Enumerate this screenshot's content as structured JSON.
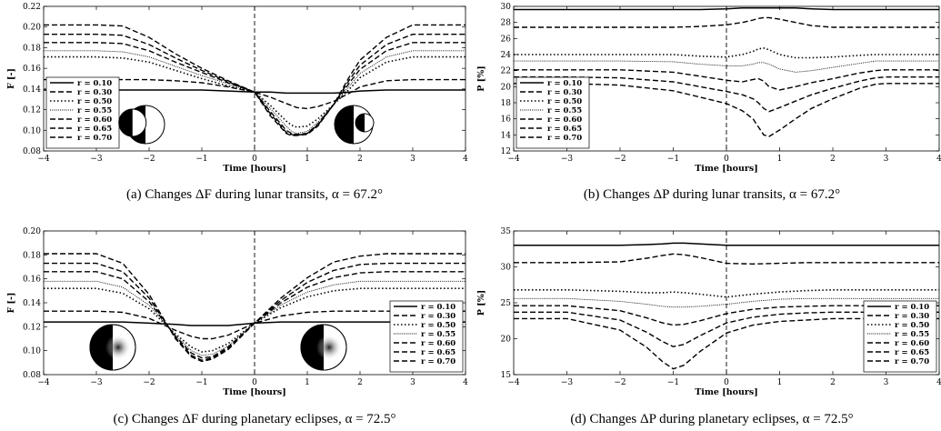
{
  "styles": {
    "line_color": "#000000",
    "disk_dark": "#000000",
    "disk_light": "#ffffff"
  },
  "chart_data": [
    {
      "id": "a",
      "type": "line",
      "caption": "(a) Changes ΔF during lunar transits, α = 67.2°",
      "xlabel": "Time [hours]",
      "ylabel": "F [-]",
      "xlim": [
        -4,
        4
      ],
      "ylim": [
        0.08,
        0.22
      ],
      "xticks": [
        -4,
        -3,
        -2,
        -1,
        0,
        1,
        2,
        3,
        4
      ],
      "yticks": [
        0.08,
        0.1,
        0.12,
        0.14,
        0.16,
        0.18,
        0.2,
        0.22
      ],
      "ytick_labels": [
        "0.08",
        "0.10",
        "0.12",
        "0.14",
        "0.16",
        "0.18",
        "0.20",
        "0.22"
      ],
      "legend_pos": "lower-left",
      "insets": "transit",
      "x": [
        -4,
        -3,
        -2.5,
        -2,
        -1.5,
        -1,
        -0.5,
        0,
        0.3,
        0.6,
        0.7,
        0.8,
        1.0,
        1.2,
        1.5,
        1.8,
        2.0,
        2.5,
        3,
        4
      ],
      "series": [
        {
          "name": "r = 0.10",
          "style": "solid",
          "values": [
            0.139,
            0.139,
            0.139,
            0.139,
            0.139,
            0.139,
            0.138,
            0.137,
            0.137,
            0.136,
            0.136,
            0.136,
            0.136,
            0.136,
            0.136,
            0.137,
            0.138,
            0.139,
            0.139,
            0.139
          ]
        },
        {
          "name": "r = 0.30",
          "style": "dash",
          "values": [
            0.149,
            0.149,
            0.149,
            0.149,
            0.148,
            0.146,
            0.142,
            0.137,
            0.132,
            0.126,
            0.124,
            0.122,
            0.121,
            0.123,
            0.128,
            0.136,
            0.142,
            0.148,
            0.149,
            0.149
          ]
        },
        {
          "name": "r = 0.50",
          "style": "dot",
          "values": [
            0.171,
            0.171,
            0.17,
            0.166,
            0.158,
            0.15,
            0.143,
            0.137,
            0.124,
            0.109,
            0.105,
            0.103,
            0.104,
            0.111,
            0.125,
            0.14,
            0.151,
            0.166,
            0.171,
            0.171
          ]
        },
        {
          "name": "r = 0.55",
          "style": "fine",
          "values": [
            0.177,
            0.177,
            0.176,
            0.171,
            0.162,
            0.153,
            0.145,
            0.137,
            0.121,
            0.104,
            0.099,
            0.097,
            0.099,
            0.108,
            0.125,
            0.143,
            0.155,
            0.171,
            0.177,
            0.177
          ]
        },
        {
          "name": "r = 0.60",
          "style": "dash",
          "values": [
            0.185,
            0.185,
            0.184,
            0.177,
            0.166,
            0.156,
            0.146,
            0.137,
            0.118,
            0.1,
            0.097,
            0.096,
            0.097,
            0.106,
            0.125,
            0.146,
            0.159,
            0.177,
            0.185,
            0.185
          ]
        },
        {
          "name": "r = 0.65",
          "style": "dash",
          "values": [
            0.193,
            0.193,
            0.192,
            0.183,
            0.17,
            0.158,
            0.147,
            0.137,
            0.116,
            0.098,
            0.096,
            0.095,
            0.097,
            0.105,
            0.125,
            0.149,
            0.163,
            0.183,
            0.193,
            0.193
          ]
        },
        {
          "name": "r = 0.70",
          "style": "dash",
          "values": [
            0.202,
            0.202,
            0.201,
            0.19,
            0.174,
            0.16,
            0.148,
            0.137,
            0.114,
            0.097,
            0.095,
            0.095,
            0.096,
            0.104,
            0.125,
            0.152,
            0.168,
            0.19,
            0.202,
            0.202
          ]
        }
      ]
    },
    {
      "id": "b",
      "type": "line",
      "caption": "(b) Changes ΔP during lunar transits, α = 67.2°",
      "xlabel": "Time [hours]",
      "ylabel": "P [%]",
      "xlim": [
        -4,
        4
      ],
      "ylim": [
        12,
        30
      ],
      "xticks": [
        -4,
        -3,
        -2,
        -1,
        0,
        1,
        2,
        3,
        4
      ],
      "yticks": [
        12,
        14,
        16,
        18,
        20,
        22,
        24,
        26,
        28,
        30
      ],
      "ytick_labels": [
        "12",
        "14",
        "16",
        "18",
        "20",
        "22",
        "24",
        "26",
        "28",
        "30"
      ],
      "legend_pos": "lower-left",
      "insets": "",
      "x": [
        -4,
        -3,
        -2,
        -1,
        -0.5,
        0,
        0.3,
        0.5,
        0.6,
        0.7,
        0.8,
        1.0,
        1.3,
        1.6,
        2.0,
        2.5,
        2.8,
        3.0,
        4
      ],
      "series": [
        {
          "name": "r = 0.10",
          "style": "solid",
          "values": [
            29.6,
            29.6,
            29.6,
            29.6,
            29.6,
            29.7,
            29.8,
            29.8,
            29.8,
            29.8,
            29.8,
            29.8,
            29.8,
            29.7,
            29.6,
            29.6,
            29.6,
            29.6,
            29.6
          ]
        },
        {
          "name": "r = 0.30",
          "style": "dash",
          "values": [
            27.4,
            27.4,
            27.4,
            27.4,
            27.5,
            27.7,
            28.0,
            28.3,
            28.5,
            28.6,
            28.6,
            28.4,
            28.0,
            27.6,
            27.4,
            27.4,
            27.4,
            27.4,
            27.4
          ]
        },
        {
          "name": "r = 0.50",
          "style": "dot",
          "values": [
            24.0,
            24.0,
            24.0,
            24.0,
            23.8,
            23.7,
            24.0,
            24.4,
            24.7,
            24.8,
            24.6,
            24.0,
            23.6,
            23.6,
            23.7,
            23.9,
            24.0,
            24.0,
            24.0
          ]
        },
        {
          "name": "r = 0.55",
          "style": "fine",
          "values": [
            23.2,
            23.2,
            23.2,
            23.1,
            22.8,
            22.6,
            22.6,
            22.8,
            23.0,
            23.0,
            22.8,
            22.2,
            21.8,
            22.0,
            22.4,
            22.9,
            23.2,
            23.2,
            23.2
          ]
        },
        {
          "name": "r = 0.60",
          "style": "dash",
          "values": [
            22.1,
            22.1,
            22.1,
            21.8,
            21.3,
            20.8,
            20.6,
            20.9,
            21.0,
            20.7,
            20.0,
            19.6,
            20.0,
            20.5,
            21.0,
            21.7,
            22.0,
            22.1,
            22.1
          ]
        },
        {
          "name": "r = 0.65",
          "style": "dash",
          "values": [
            21.2,
            21.2,
            21.1,
            20.6,
            20.0,
            19.4,
            19.0,
            18.5,
            18.0,
            17.3,
            16.9,
            17.4,
            18.2,
            19.0,
            19.8,
            20.7,
            21.1,
            21.2,
            21.2
          ]
        },
        {
          "name": "r = 0.70",
          "style": "dash",
          "values": [
            20.4,
            20.4,
            20.2,
            19.5,
            18.7,
            17.9,
            17.0,
            16.0,
            15.0,
            14.0,
            13.8,
            14.6,
            16.0,
            17.3,
            18.5,
            19.8,
            20.3,
            20.4,
            20.4
          ]
        }
      ]
    },
    {
      "id": "c",
      "type": "line",
      "caption": "(c) Changes ΔF during planetary eclipses, α = 72.5°",
      "xlabel": "Time [hours]",
      "ylabel": "F [-]",
      "xlim": [
        -4,
        4
      ],
      "ylim": [
        0.08,
        0.2
      ],
      "xticks": [
        -4,
        -3,
        -2,
        -1,
        0,
        1,
        2,
        3,
        4
      ],
      "yticks": [
        0.08,
        0.1,
        0.12,
        0.14,
        0.16,
        0.18,
        0.2
      ],
      "ytick_labels": [
        "0.08",
        "0.10",
        "0.12",
        "0.14",
        "0.16",
        "0.18",
        "0.20"
      ],
      "legend_pos": "lower-right",
      "insets": "eclipse",
      "x": [
        -4,
        -3,
        -2.5,
        -2,
        -1.5,
        -1.2,
        -1.0,
        -0.8,
        -0.5,
        0,
        0.5,
        1,
        1.5,
        2,
        2.5,
        3,
        4
      ],
      "series": [
        {
          "name": "r = 0.10",
          "style": "solid",
          "values": [
            0.124,
            0.124,
            0.124,
            0.123,
            0.122,
            0.121,
            0.121,
            0.121,
            0.121,
            0.123,
            0.124,
            0.124,
            0.124,
            0.124,
            0.124,
            0.124,
            0.124
          ]
        },
        {
          "name": "r = 0.30",
          "style": "dash",
          "values": [
            0.133,
            0.133,
            0.132,
            0.127,
            0.117,
            0.112,
            0.11,
            0.11,
            0.113,
            0.123,
            0.129,
            0.132,
            0.133,
            0.133,
            0.133,
            0.133,
            0.133
          ]
        },
        {
          "name": "r = 0.50",
          "style": "dot",
          "values": [
            0.152,
            0.152,
            0.148,
            0.135,
            0.114,
            0.103,
            0.099,
            0.1,
            0.106,
            0.123,
            0.136,
            0.145,
            0.15,
            0.152,
            0.152,
            0.152,
            0.152
          ]
        },
        {
          "name": "r = 0.55",
          "style": "fine",
          "values": [
            0.158,
            0.158,
            0.153,
            0.138,
            0.113,
            0.1,
            0.096,
            0.097,
            0.104,
            0.123,
            0.138,
            0.149,
            0.155,
            0.158,
            0.158,
            0.158,
            0.158
          ]
        },
        {
          "name": "r = 0.60",
          "style": "dash",
          "values": [
            0.166,
            0.166,
            0.16,
            0.141,
            0.112,
            0.098,
            0.094,
            0.095,
            0.103,
            0.123,
            0.14,
            0.153,
            0.161,
            0.165,
            0.166,
            0.166,
            0.166
          ]
        },
        {
          "name": "r = 0.65",
          "style": "dash",
          "values": [
            0.173,
            0.173,
            0.166,
            0.144,
            0.111,
            0.096,
            0.092,
            0.094,
            0.102,
            0.123,
            0.142,
            0.157,
            0.167,
            0.172,
            0.173,
            0.173,
            0.173
          ]
        },
        {
          "name": "r = 0.70",
          "style": "dash",
          "values": [
            0.181,
            0.181,
            0.173,
            0.147,
            0.11,
            0.095,
            0.091,
            0.093,
            0.101,
            0.123,
            0.144,
            0.161,
            0.174,
            0.179,
            0.181,
            0.181,
            0.181
          ]
        }
      ]
    },
    {
      "id": "d",
      "type": "line",
      "caption": "(d) Changes ΔP during planetary eclipses, α = 72.5°",
      "xlabel": "Time [hours]",
      "ylabel": "P [%]",
      "xlim": [
        -4,
        4
      ],
      "ylim": [
        15,
        35
      ],
      "xticks": [
        -4,
        -3,
        -2,
        -1,
        0,
        1,
        2,
        3,
        4
      ],
      "yticks": [
        15,
        20,
        25,
        30,
        35
      ],
      "ytick_labels": [
        "15",
        "20",
        "25",
        "30",
        "35"
      ],
      "legend_pos": "lower-right",
      "insets": "",
      "x": [
        -4,
        -3,
        -2,
        -1.5,
        -1.2,
        -1.0,
        -0.8,
        -0.5,
        0,
        0.5,
        1,
        1.5,
        2,
        2.5,
        3,
        4
      ],
      "series": [
        {
          "name": "r = 0.10",
          "style": "solid",
          "values": [
            33.0,
            33.0,
            33.0,
            33.1,
            33.2,
            33.3,
            33.3,
            33.2,
            33.0,
            33.0,
            33.0,
            33.0,
            33.0,
            33.0,
            33.0,
            33.0
          ]
        },
        {
          "name": "r = 0.30",
          "style": "dash",
          "values": [
            30.6,
            30.6,
            30.7,
            31.2,
            31.6,
            31.8,
            31.7,
            31.3,
            30.5,
            30.4,
            30.5,
            30.6,
            30.6,
            30.6,
            30.6,
            30.6
          ]
        },
        {
          "name": "r = 0.50",
          "style": "dot",
          "values": [
            26.8,
            26.8,
            26.6,
            26.4,
            26.4,
            26.5,
            26.4,
            26.2,
            25.8,
            26.2,
            26.5,
            26.7,
            26.8,
            26.8,
            26.8,
            26.8
          ]
        },
        {
          "name": "r = 0.55",
          "style": "fine",
          "values": [
            25.6,
            25.6,
            25.2,
            24.8,
            24.5,
            24.4,
            24.4,
            24.5,
            24.8,
            25.2,
            25.5,
            25.6,
            25.6,
            25.6,
            25.6,
            25.6
          ]
        },
        {
          "name": "r = 0.60",
          "style": "dash",
          "values": [
            24.6,
            24.6,
            23.9,
            22.9,
            22.2,
            21.9,
            22.0,
            22.5,
            23.5,
            24.1,
            24.4,
            24.5,
            24.6,
            24.6,
            24.6,
            24.6
          ]
        },
        {
          "name": "r = 0.65",
          "style": "dash",
          "values": [
            23.7,
            23.7,
            22.6,
            20.9,
            19.6,
            18.9,
            19.2,
            20.4,
            22.2,
            23.0,
            23.4,
            23.6,
            23.7,
            23.7,
            23.7,
            23.7
          ]
        },
        {
          "name": "r = 0.70",
          "style": "dash",
          "values": [
            22.8,
            22.8,
            21.2,
            18.8,
            16.8,
            15.8,
            16.3,
            18.2,
            20.8,
            21.9,
            22.4,
            22.6,
            22.8,
            22.8,
            22.8,
            22.8
          ]
        }
      ]
    }
  ]
}
